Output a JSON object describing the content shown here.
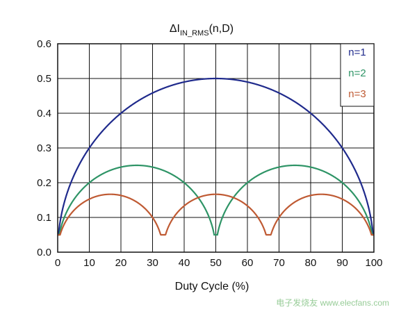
{
  "chart_data": {
    "type": "line",
    "title": "ΔI",
    "title_subscript": "IN_RMS",
    "title_suffix": "(n,D)",
    "xlabel": "Duty Cycle (%)",
    "ylabel": "",
    "xlim": [
      0,
      100
    ],
    "ylim": [
      0,
      0.6
    ],
    "x_ticks": [
      "0",
      "10",
      "20",
      "30",
      "40",
      "50",
      "60",
      "70",
      "80",
      "90",
      "100"
    ],
    "y_ticks": [
      "0.0",
      "0.1",
      "0.2",
      "0.3",
      "0.4",
      "0.5",
      "0.6"
    ],
    "grid": true,
    "legend_position": "top-right",
    "x": [
      0,
      2,
      5,
      10,
      15,
      20,
      25,
      30,
      33.3,
      35,
      40,
      45,
      50,
      55,
      60,
      65,
      66.7,
      70,
      75,
      80,
      85,
      90,
      95,
      98,
      100
    ],
    "series": [
      {
        "name": "n=1",
        "color": "#1f2a8c",
        "values": [
          0.05,
          0.14,
          0.218,
          0.3,
          0.357,
          0.4,
          0.433,
          0.458,
          0.471,
          0.477,
          0.49,
          0.497,
          0.5,
          0.497,
          0.49,
          0.477,
          0.471,
          0.458,
          0.433,
          0.4,
          0.357,
          0.3,
          0.218,
          0.14,
          0.05
        ]
      },
      {
        "name": "n=2",
        "color": "#2e9466",
        "values": [
          0.05,
          0.1,
          0.151,
          0.2,
          0.229,
          0.245,
          0.25,
          0.245,
          0.236,
          0.229,
          0.2,
          0.151,
          0.05,
          0.151,
          0.2,
          0.229,
          0.236,
          0.245,
          0.25,
          0.245,
          0.229,
          0.2,
          0.151,
          0.1,
          0.05
        ]
      },
      {
        "name": "n=3",
        "color": "#bf5a33",
        "values": [
          0.05,
          0.093,
          0.128,
          0.163,
          0.179,
          0.178,
          0.161,
          0.118,
          0.05,
          0.1,
          0.152,
          0.173,
          0.176,
          0.173,
          0.152,
          0.1,
          0.05,
          0.118,
          0.161,
          0.178,
          0.179,
          0.163,
          0.128,
          0.093,
          0.05
        ]
      }
    ]
  },
  "watermark": "电子发烧友 www.elecfans.com"
}
